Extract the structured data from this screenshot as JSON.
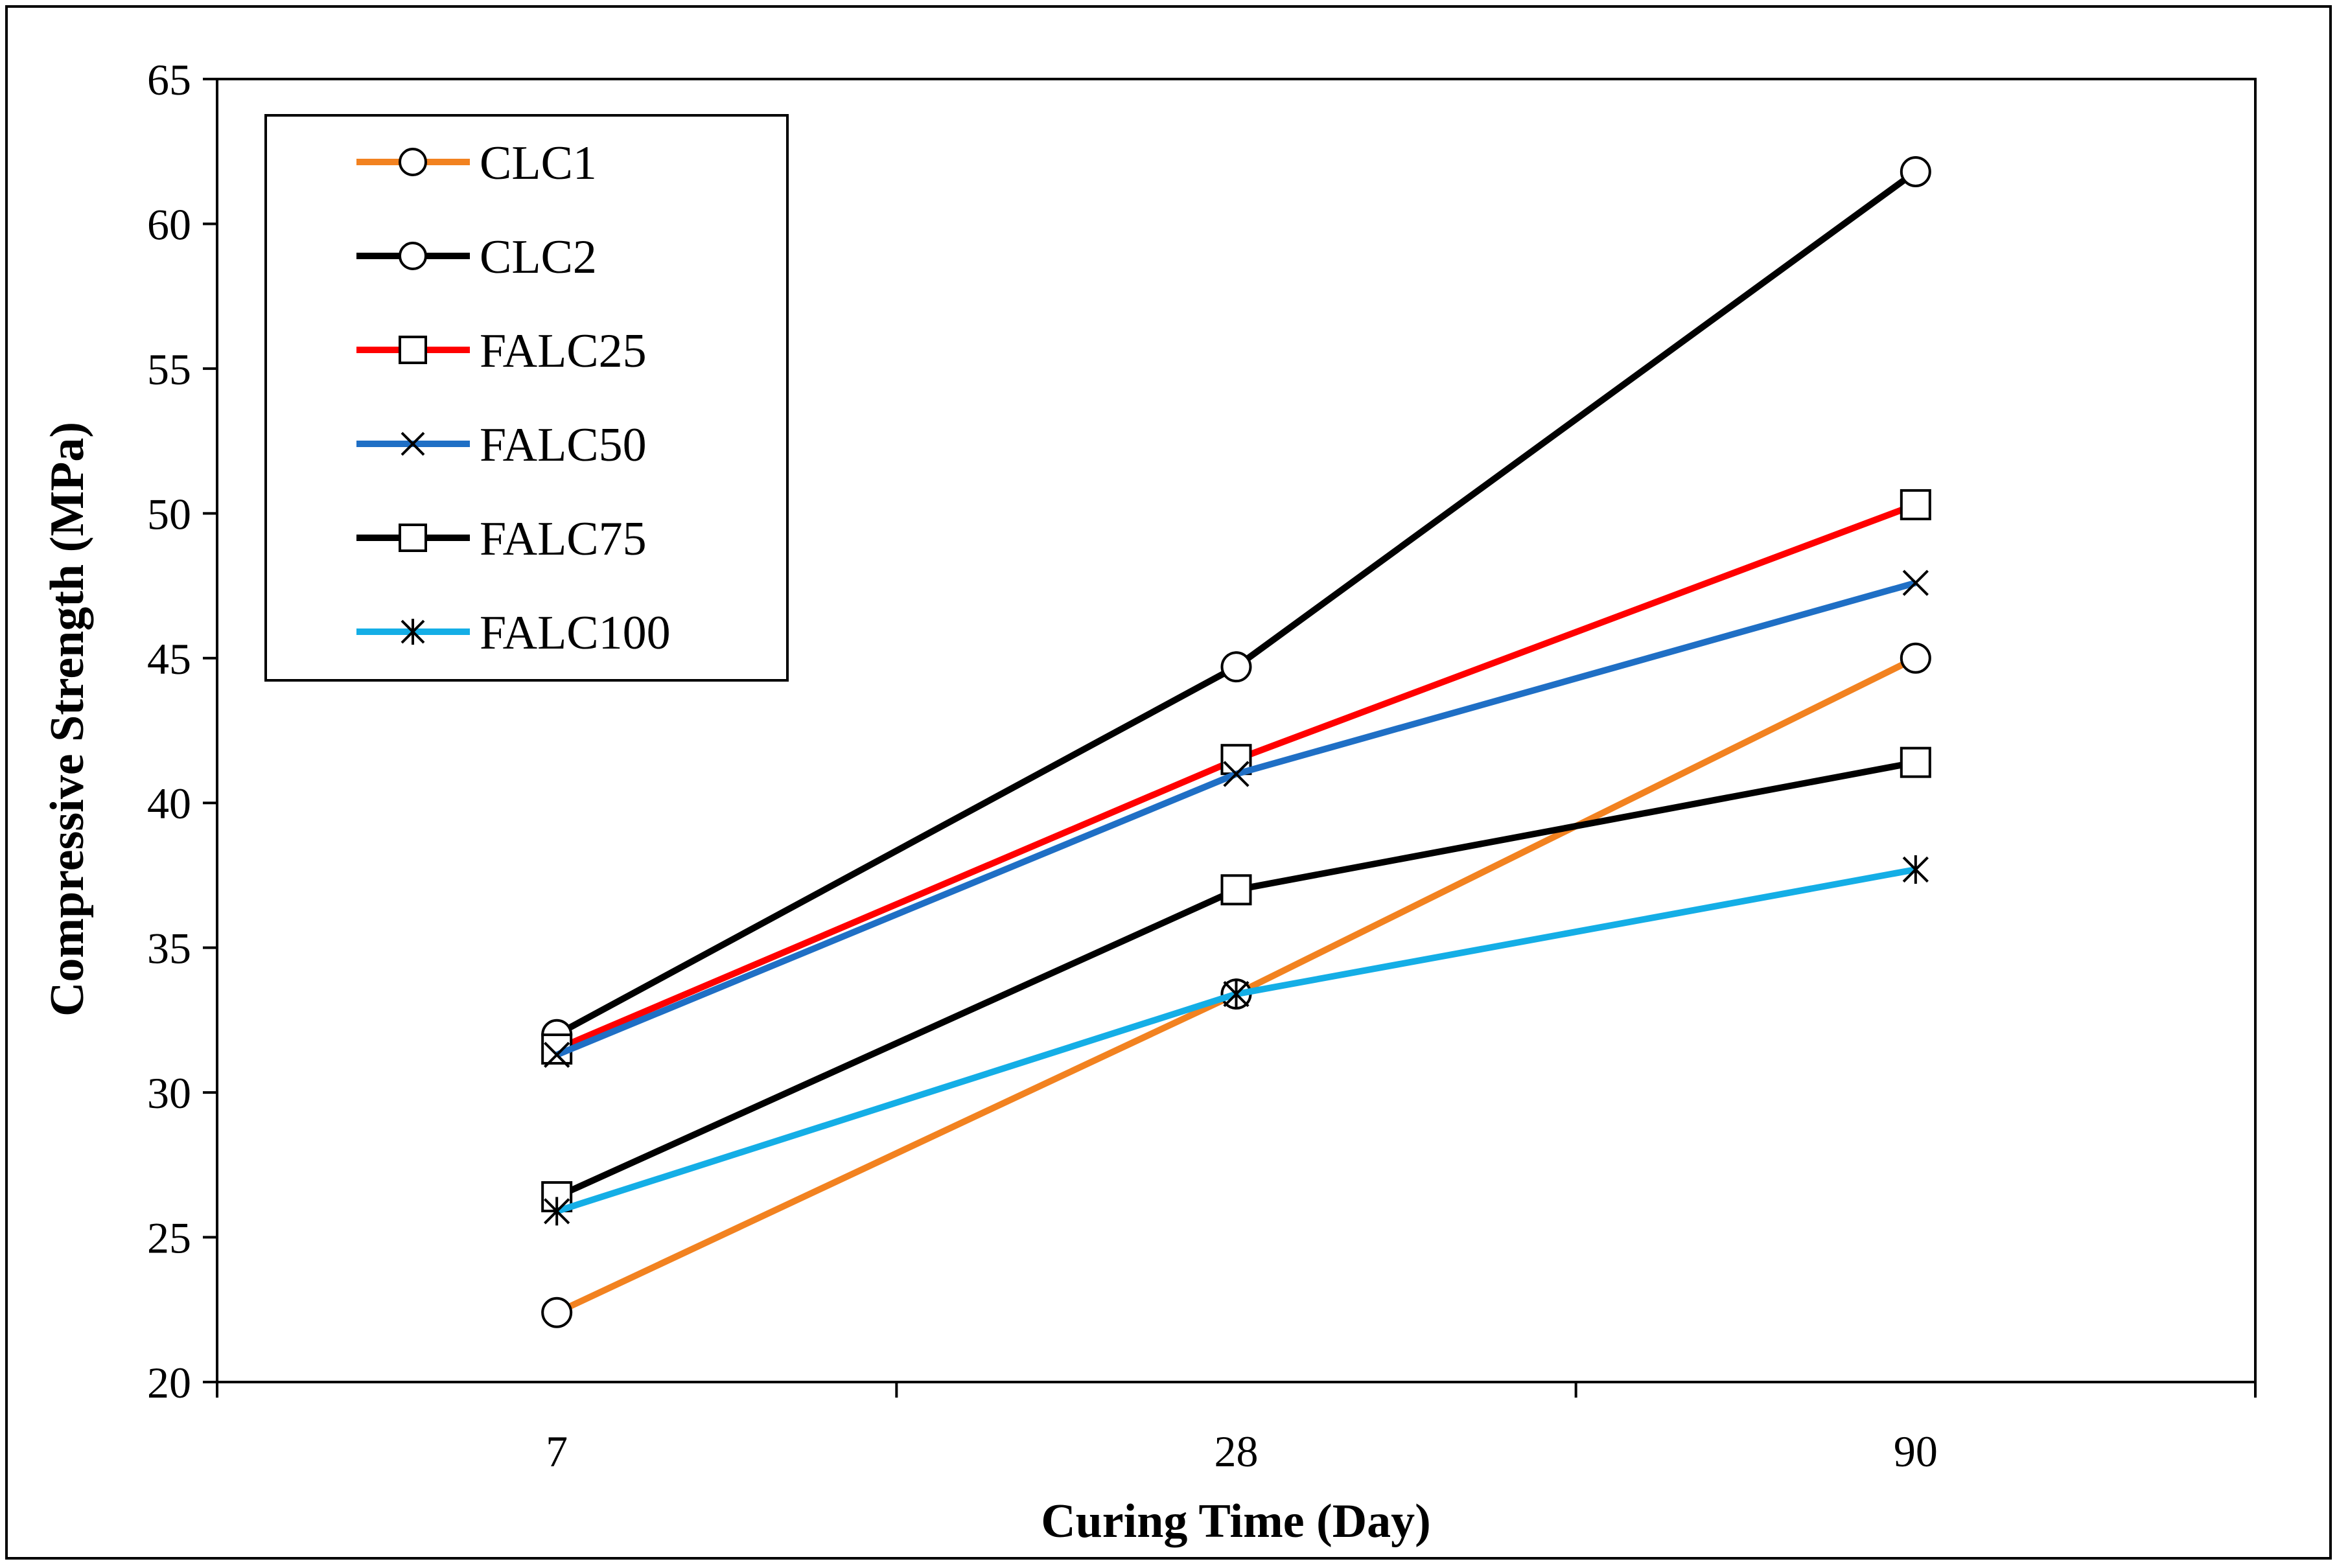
{
  "chart_data": {
    "type": "line",
    "title": "",
    "xlabel": "Curing Time (Day)",
    "ylabel": "Compressive Strength (MPa)",
    "categories": [
      "7",
      "28",
      "90"
    ],
    "ylim": [
      20,
      65
    ],
    "yticks": [
      "20",
      "25",
      "30",
      "35",
      "40",
      "45",
      "50",
      "55",
      "60",
      "65"
    ],
    "grid": false,
    "legend_position": "top-left",
    "series": [
      {
        "name": "CLC1",
        "color": "#f28220",
        "marker": "circle",
        "values": [
          22.4,
          33.4,
          45.0
        ]
      },
      {
        "name": "CLC2",
        "color": "#000000",
        "marker": "circle",
        "values": [
          32.0,
          44.7,
          61.8
        ]
      },
      {
        "name": "FALC25",
        "color": "#ff0000",
        "marker": "square",
        "values": [
          31.5,
          41.5,
          50.3
        ]
      },
      {
        "name": "FALC50",
        "color": "#1f6fc5",
        "marker": "x",
        "values": [
          31.3,
          41.0,
          47.6
        ]
      },
      {
        "name": "FALC75",
        "color": "#000000",
        "marker": "square",
        "values": [
          26.4,
          37.0,
          41.4
        ]
      },
      {
        "name": "FALC100",
        "color": "#14aee6",
        "marker": "star",
        "values": [
          25.9,
          33.4,
          37.7
        ]
      }
    ]
  }
}
